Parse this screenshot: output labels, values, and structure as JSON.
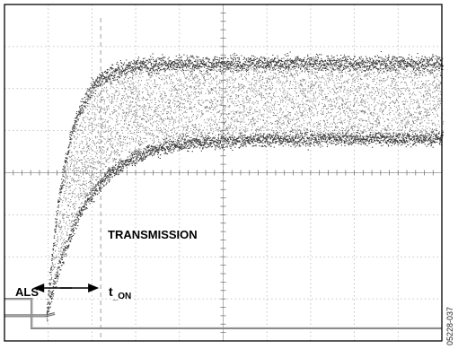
{
  "figure_id": "05228-037",
  "chart_data": {
    "type": "line",
    "title": "",
    "xlabel": "",
    "ylabel": "",
    "grid": true,
    "grid_divisions": {
      "x": 10,
      "y": 8
    },
    "traces": [
      {
        "name": "TRANSMISSION",
        "style": "noisy optical eye",
        "baseline_div": 0.6,
        "rise_start_div": 0.95,
        "rise_mid_div": 1.7,
        "settle_div": 3.5,
        "upper_band_div": 6.6,
        "lower_band_div": 4.8,
        "upper_tc_div": 0.45,
        "lower_tc_div": 0.9,
        "color": "#505050"
      },
      {
        "name": "ALS",
        "style": "logic step",
        "high_div": 0.7,
        "low_div": 0.0,
        "fall_div": 0.62,
        "color": "#555555"
      }
    ],
    "annotations": {
      "transmission_label": "TRANSMISSION",
      "als_label": "ALS",
      "t_on_main": "t",
      "t_on_sub": "_ON",
      "t_on_from_div": 0.62,
      "t_on_to_div": 2.2
    }
  }
}
